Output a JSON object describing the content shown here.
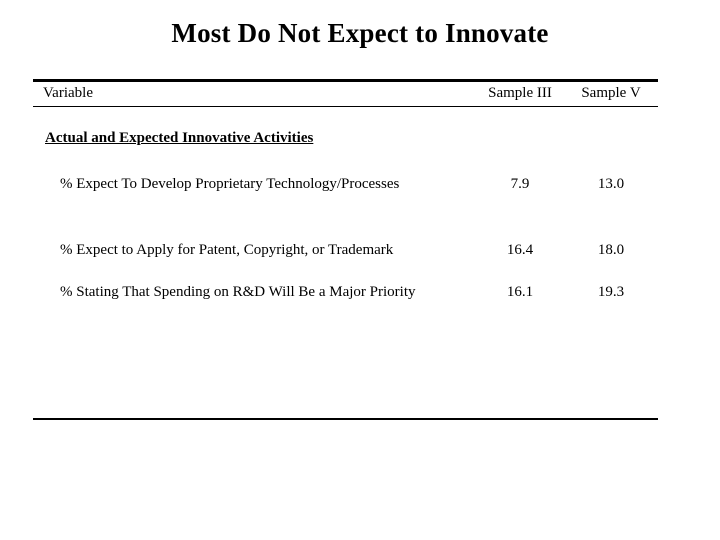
{
  "slide": {
    "title": "Most Do Not Expect to Innovate",
    "background_color": "#ffffff",
    "text_color": "#000000",
    "rule_color": "#000000"
  },
  "table": {
    "columns": {
      "variable": "Variable",
      "sample_iii": "Sample III",
      "sample_v": "Sample V"
    },
    "section_header": "Actual and Expected Innovative Activities",
    "rows": [
      {
        "label": "% Expect To Develop Proprietary Technology/Processes",
        "sample_iii": "7.9",
        "sample_v": "13.0"
      },
      {
        "label": "% Expect to Apply for Patent, Copyright, or Trademark",
        "sample_iii": "16.4",
        "sample_v": "18.0"
      },
      {
        "label": "% Stating That Spending on R&D Will Be a Major Priority",
        "sample_iii": "16.1",
        "sample_v": "19.3"
      }
    ]
  }
}
